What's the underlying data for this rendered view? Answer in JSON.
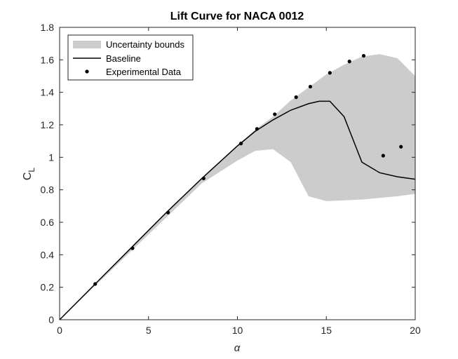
{
  "chart_data": {
    "type": "line",
    "title": "Lift Curve for NACA 0012",
    "xlabel": "α",
    "ylabel_main": "C",
    "ylabel_sub": "L",
    "xlim": [
      0,
      20
    ],
    "ylim": [
      0,
      1.8
    ],
    "xticks": [
      0,
      5,
      10,
      15,
      20
    ],
    "xtick_labels": [
      "0",
      "5",
      "10",
      "15",
      "20"
    ],
    "yticks": [
      0,
      0.2,
      0.4,
      0.6,
      0.8,
      1,
      1.2,
      1.4,
      1.6,
      1.8
    ],
    "ytick_labels": [
      "0",
      "0.2",
      "0.4",
      "0.6",
      "0.8",
      "1",
      "1.2",
      "1.4",
      "1.6",
      "1.8"
    ],
    "grid": false,
    "legend_position": "top-left",
    "colors": {
      "band": "#cccccc",
      "line": "#000000",
      "points": "#000000",
      "axis": "#262626"
    },
    "series": [
      {
        "name": "Uncertainty bounds",
        "kind": "band",
        "upper": {
          "x": [
            0,
            2,
            4,
            6,
            8,
            10,
            11,
            12,
            13,
            14,
            15,
            16,
            17,
            18,
            19,
            20
          ],
          "y": [
            0,
            0.22,
            0.44,
            0.66,
            0.87,
            1.07,
            1.17,
            1.25,
            1.35,
            1.43,
            1.51,
            1.57,
            1.62,
            1.635,
            1.61,
            1.5
          ]
        },
        "lower": {
          "x": [
            0,
            2,
            4,
            6,
            8,
            10,
            11,
            12,
            13,
            14,
            15,
            16,
            17,
            18,
            19,
            20
          ],
          "y": [
            0,
            0.21,
            0.42,
            0.63,
            0.84,
            0.98,
            1.04,
            1.05,
            0.97,
            0.76,
            0.73,
            0.735,
            0.74,
            0.75,
            0.76,
            0.775
          ]
        }
      },
      {
        "name": "Baseline",
        "kind": "line",
        "x": [
          0,
          2,
          4,
          6,
          8,
          10,
          11,
          12,
          13,
          14,
          14.6,
          15.2,
          16,
          17,
          18,
          19,
          20
        ],
        "y": [
          0,
          0.22,
          0.44,
          0.66,
          0.87,
          1.07,
          1.16,
          1.23,
          1.29,
          1.33,
          1.345,
          1.345,
          1.25,
          0.97,
          0.905,
          0.88,
          0.865
        ]
      },
      {
        "name": "Experimental Data",
        "kind": "scatter",
        "x": [
          2,
          4.1,
          6.1,
          8.1,
          10.2,
          11.1,
          12.1,
          13.3,
          14.1,
          15.2,
          16.3,
          17.1,
          18.2,
          19.2
        ],
        "y": [
          0.22,
          0.44,
          0.66,
          0.87,
          1.085,
          1.175,
          1.265,
          1.37,
          1.435,
          1.52,
          1.59,
          1.625,
          1.01,
          1.065
        ]
      }
    ]
  }
}
